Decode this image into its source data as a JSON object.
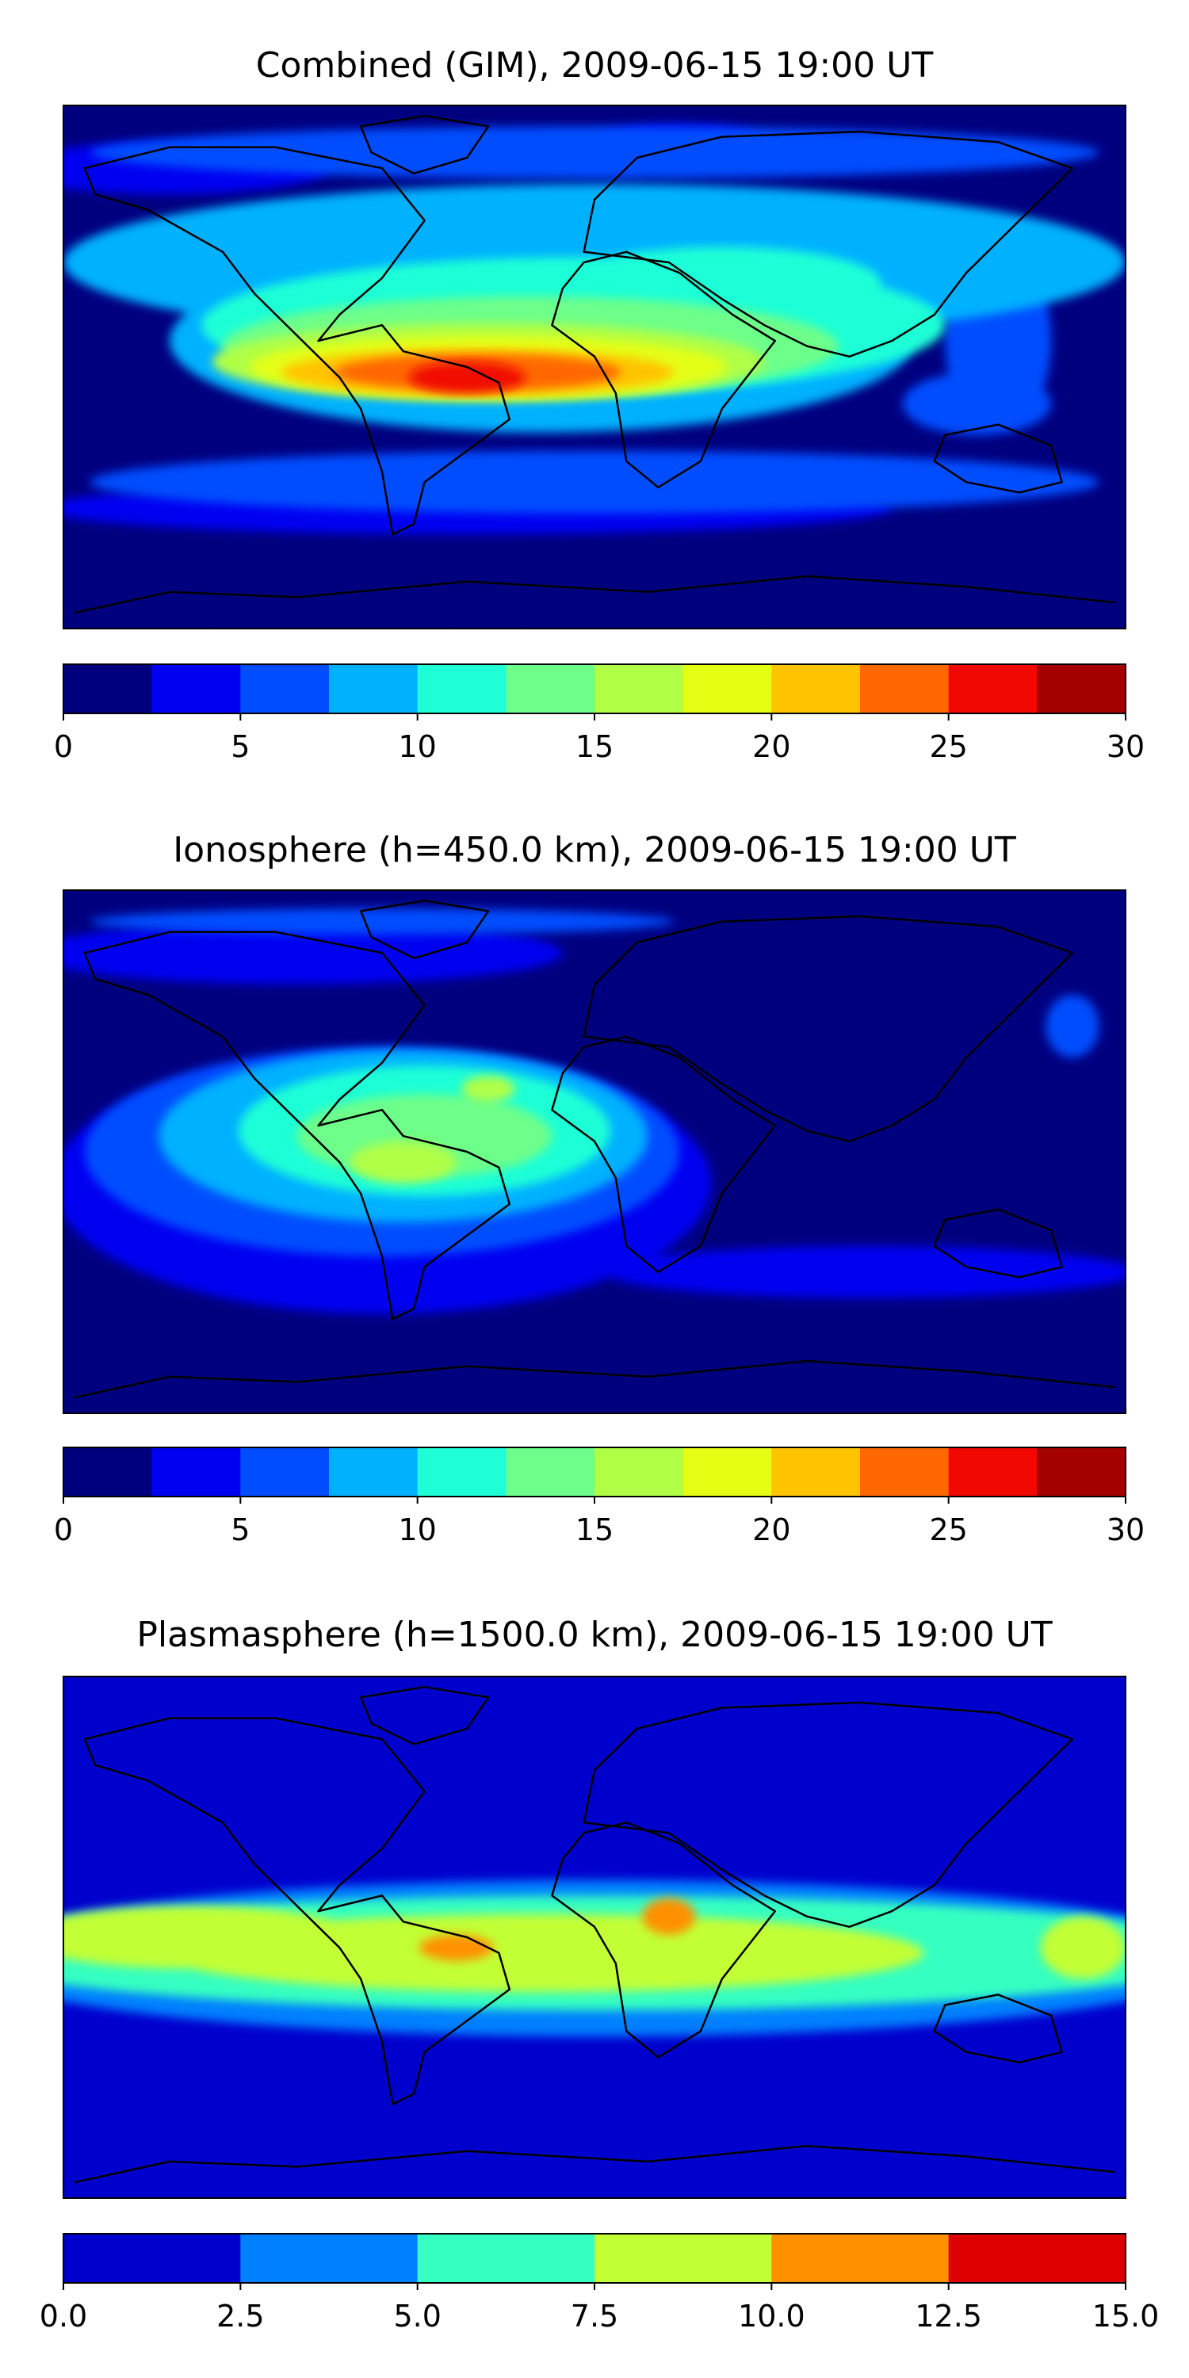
{
  "chart_data": [
    {
      "type": "heatmap",
      "title": "Combined (GIM), 2009-06-15 19:00 UT",
      "xlabel": "",
      "ylabel": "",
      "colorbar": {
        "levels": [
          0,
          2.5,
          5,
          7.5,
          10,
          12.5,
          15,
          17.5,
          20,
          22.5,
          25,
          27.5,
          30
        ],
        "colors": [
          "#00007f",
          "#0000f1",
          "#004dff",
          "#00b1ff",
          "#1fffd7",
          "#6dff8a",
          "#b0ff46",
          "#e4ff13",
          "#ffc400",
          "#ff6800",
          "#f10800",
          "#a40000"
        ],
        "ticks": [
          "0",
          "5",
          "10",
          "15",
          "20",
          "25",
          "30"
        ]
      },
      "bands": [
        {
          "value": 1.25,
          "blobs": [
            [
              0.4,
              0.92,
              0.75,
              0.16
            ],
            [
              0.85,
              0.86,
              0.25,
              0.2
            ]
          ]
        },
        {
          "value": 3.75,
          "blobs": [
            [
              0.38,
              0.77,
              0.8,
              0.1
            ],
            [
              0.1,
              0.12,
              0.3,
              0.1
            ],
            [
              0.58,
              0.06,
              0.15,
              0.05
            ]
          ]
        },
        {
          "value": 6.25,
          "blobs": [
            [
              0.5,
              0.72,
              0.95,
              0.12
            ],
            [
              0.5,
              0.09,
              0.95,
              0.1
            ],
            [
              0.86,
              0.57,
              0.14,
              0.12
            ],
            [
              0.88,
              0.45,
              0.1,
              0.35
            ]
          ]
        },
        {
          "value": 8.75,
          "blobs": [
            [
              0.45,
              0.45,
              0.7,
              0.35
            ],
            [
              0.5,
              0.3,
              1.0,
              0.3
            ]
          ]
        },
        {
          "value": 11.25,
          "blobs": [
            [
              0.48,
              0.42,
              0.7,
              0.26
            ],
            [
              0.62,
              0.34,
              0.3,
              0.14
            ]
          ]
        },
        {
          "value": 13.75,
          "blobs": [
            [
              0.44,
              0.46,
              0.58,
              0.19
            ]
          ]
        },
        {
          "value": 16.25,
          "blobs": [
            [
              0.4,
              0.49,
              0.52,
              0.15
            ]
          ]
        },
        {
          "value": 18.75,
          "blobs": [
            [
              0.4,
              0.5,
              0.45,
              0.12
            ]
          ]
        },
        {
          "value": 21.25,
          "blobs": [
            [
              0.39,
              0.51,
              0.37,
              0.09
            ]
          ]
        },
        {
          "value": 23.75,
          "blobs": [
            [
              0.39,
              0.51,
              0.27,
              0.07
            ]
          ]
        },
        {
          "value": 26.25,
          "blobs": [
            [
              0.38,
              0.52,
              0.11,
              0.06
            ]
          ]
        }
      ]
    },
    {
      "type": "heatmap",
      "title": "Ionosphere  (h=450.0 km), 2009-06-15 19:00 UT",
      "xlabel": "",
      "ylabel": "",
      "colorbar": {
        "levels": [
          0,
          2.5,
          5,
          7.5,
          10,
          12.5,
          15,
          17.5,
          20,
          22.5,
          25,
          27.5,
          30
        ],
        "colors": [
          "#00007f",
          "#0000f1",
          "#004dff",
          "#00b1ff",
          "#1fffd7",
          "#6dff8a",
          "#b0ff46",
          "#e4ff13",
          "#ffc400",
          "#ff6800",
          "#f10800",
          "#a40000"
        ],
        "ticks": [
          "0",
          "5",
          "10",
          "15",
          "20",
          "25",
          "30"
        ]
      },
      "bands": [
        {
          "value": 3.75,
          "blobs": [
            [
              0.3,
              0.56,
              0.62,
              0.5
            ],
            [
              0.76,
              0.73,
              0.5,
              0.1
            ],
            [
              0.22,
              0.12,
              0.5,
              0.12
            ]
          ]
        },
        {
          "value": 6.25,
          "blobs": [
            [
              0.3,
              0.5,
              0.56,
              0.4
            ],
            [
              0.3,
              0.06,
              0.55,
              0.05
            ],
            [
              0.95,
              0.26,
              0.05,
              0.12
            ]
          ]
        },
        {
          "value": 8.75,
          "blobs": [
            [
              0.32,
              0.47,
              0.46,
              0.33
            ]
          ]
        },
        {
          "value": 11.25,
          "blobs": [
            [
              0.34,
              0.46,
              0.35,
              0.25
            ]
          ]
        },
        {
          "value": 13.75,
          "blobs": [
            [
              0.34,
              0.47,
              0.24,
              0.16
            ]
          ]
        },
        {
          "value": 16.25,
          "blobs": [
            [
              0.32,
              0.52,
              0.1,
              0.08
            ],
            [
              0.4,
              0.38,
              0.05,
              0.05
            ]
          ]
        }
      ]
    },
    {
      "type": "heatmap",
      "title": "Plasmasphere (h=1500.0 km), 2009-06-15 19:00 UT",
      "xlabel": "",
      "ylabel": "",
      "colorbar": {
        "levels": [
          0,
          2.5,
          5,
          7.5,
          10,
          12.5,
          15
        ],
        "colors": [
          "#0000cd",
          "#0080ff",
          "#35ffc1",
          "#c2ff35",
          "#ff9100",
          "#dc0000"
        ],
        "ticks": [
          "0.0",
          "2.5",
          "5.0",
          "7.5",
          "10.0",
          "12.5",
          "15.0"
        ]
      },
      "bands": [
        {
          "value": 3.75,
          "blobs": [
            [
              0.5,
              0.54,
              1.2,
              0.3
            ]
          ]
        },
        {
          "value": 6.25,
          "blobs": [
            [
              0.5,
              0.53,
              1.2,
              0.22
            ]
          ]
        },
        {
          "value": 8.75,
          "blobs": [
            [
              0.45,
              0.53,
              0.72,
              0.15
            ],
            [
              0.12,
              0.5,
              0.32,
              0.12
            ],
            [
              0.96,
              0.52,
              0.08,
              0.12
            ]
          ]
        },
        {
          "value": 11.25,
          "blobs": [
            [
              0.37,
              0.52,
              0.07,
              0.05
            ],
            [
              0.57,
              0.46,
              0.05,
              0.07
            ]
          ]
        }
      ]
    }
  ]
}
